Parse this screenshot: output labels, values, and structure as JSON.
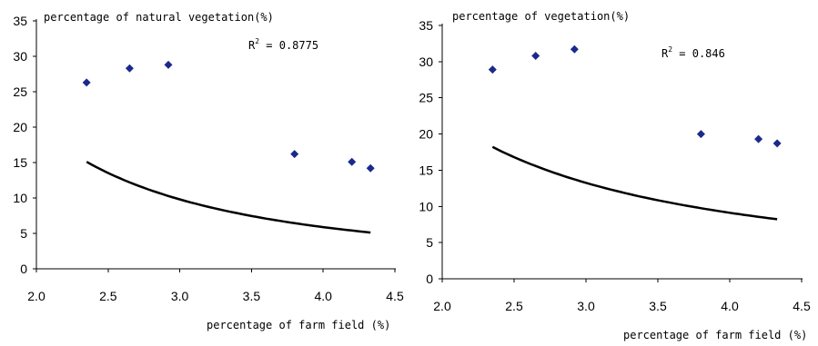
{
  "chart_data": [
    {
      "type": "scatter",
      "title": "",
      "ylabel": "percentage of natural vegetation(%)",
      "xlabel": "percentage of farm field (%)",
      "xlim": [
        2.0,
        4.5
      ],
      "ylim": [
        0,
        35
      ],
      "xticks": [
        "2.0",
        "2.5",
        "3.0",
        "3.5",
        "4.0",
        "4.5"
      ],
      "yticks": [
        "0",
        "5",
        "10",
        "15",
        "20",
        "25",
        "30",
        "35"
      ],
      "grid": false,
      "annotation": "R",
      "annotation_sup": "2",
      "annotation_rest": " = 0.8775",
      "points": [
        {
          "x": 2.35,
          "y": 26.3
        },
        {
          "x": 2.65,
          "y": 28.3
        },
        {
          "x": 2.92,
          "y": 28.8
        },
        {
          "x": 3.8,
          "y": 16.2
        },
        {
          "x": 4.2,
          "y": 15.1
        },
        {
          "x": 4.33,
          "y": 14.2
        }
      ],
      "trendline": {
        "type": "power",
        "a": 68.5,
        "b": -1.77,
        "x_from": 2.35,
        "x_to": 4.33
      }
    },
    {
      "type": "scatter",
      "title": "",
      "ylabel": "percentage of  vegetation(%)",
      "xlabel": "percentage of farm field (%)",
      "xlim": [
        2.0,
        4.5
      ],
      "ylim": [
        0,
        35
      ],
      "xticks": [
        "2.0",
        "2.5",
        "3.0",
        "3.5",
        "4.0",
        "4.5"
      ],
      "yticks": [
        "0",
        "5",
        "10",
        "15",
        "20",
        "25",
        "30",
        "35"
      ],
      "grid": false,
      "annotation": "R",
      "annotation_sup": "2",
      "annotation_rest": " = 0.846",
      "points": [
        {
          "x": 2.35,
          "y": 28.9
        },
        {
          "x": 2.65,
          "y": 30.8
        },
        {
          "x": 2.92,
          "y": 31.7
        },
        {
          "x": 3.8,
          "y": 20.0
        },
        {
          "x": 4.2,
          "y": 19.3
        },
        {
          "x": 4.33,
          "y": 18.7
        }
      ],
      "trendline": {
        "type": "power",
        "a": 55.3,
        "b": -1.3,
        "x_from": 2.35,
        "x_to": 4.33
      }
    }
  ]
}
